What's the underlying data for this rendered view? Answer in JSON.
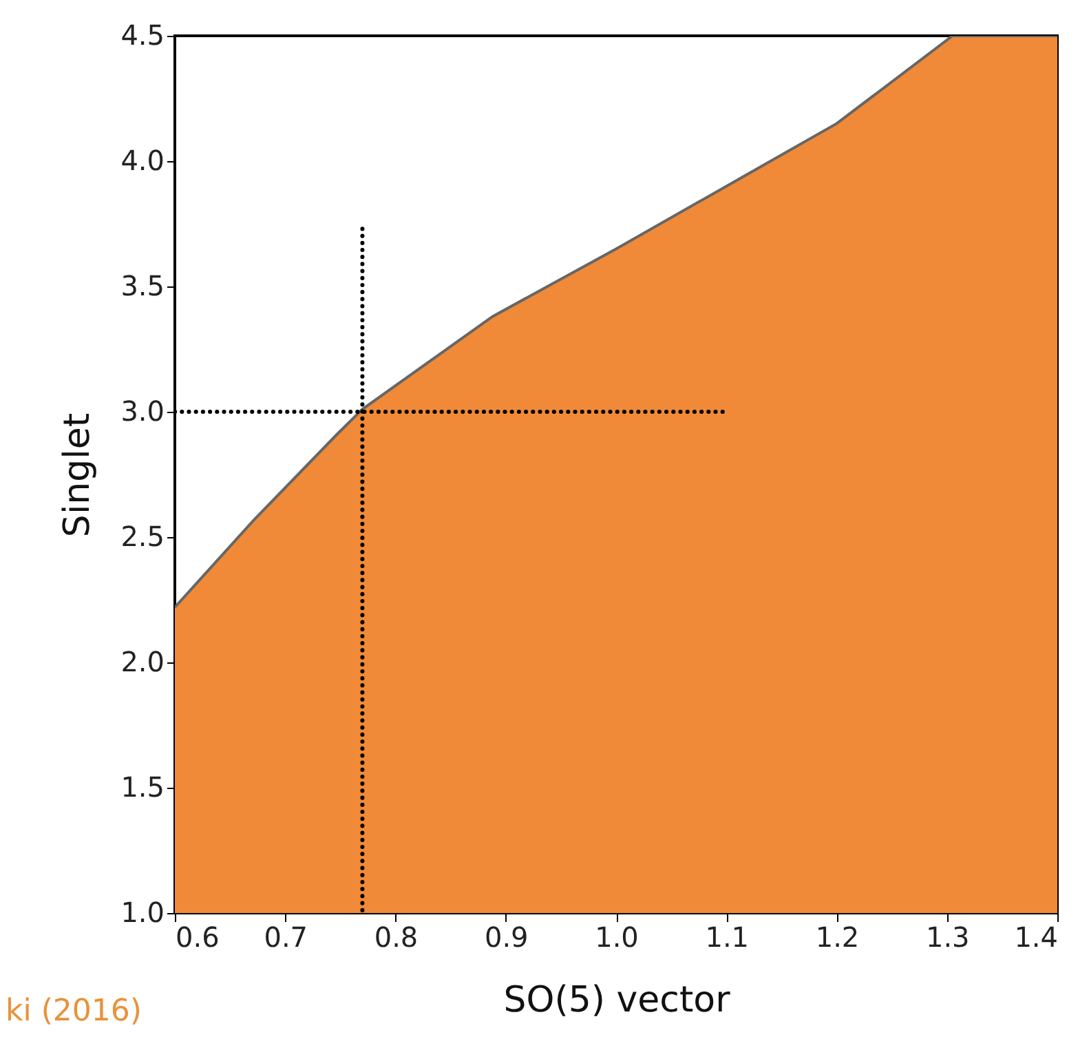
{
  "chart_data": {
    "type": "area",
    "xlabel": "SO(5) vector",
    "ylabel": "Singlet",
    "x": [
      0.6,
      0.672,
      0.747,
      0.77,
      0.888,
      1.0,
      1.1,
      1.2,
      1.305,
      1.4
    ],
    "series": [
      {
        "color": "#f08a38",
        "values": [
          2.22,
          2.57,
          2.91,
          3.01,
          3.38,
          3.65,
          3.9,
          4.15,
          4.5,
          4.5
        ]
      },
      {
        "type": "line",
        "color": "#000000",
        "line_style": "dotted",
        "x": [
          0.77,
          0.77
        ],
        "values": [
          3.73,
          1.0
        ]
      },
      {
        "type": "line",
        "color": "#000000",
        "line_style": "dotted",
        "x": [
          0.6,
          1.1
        ],
        "values": [
          3.0,
          3.0
        ]
      }
    ],
    "xlim": [
      0.6,
      1.4
    ],
    "ylim": [
      1.0,
      4.5
    ],
    "xticks": [
      0.6,
      0.7,
      0.8,
      0.9,
      {
        "value": 1.0,
        "label": "1.0"
      },
      1.1,
      1.2,
      1.3,
      1.4
    ],
    "yticks": [
      {
        "value": 1.0,
        "label": "1.0"
      },
      1.5,
      {
        "value": 2.0,
        "label": "2.0"
      },
      2.5,
      {
        "value": 3.0,
        "label": "3.0"
      },
      3.5,
      {
        "value": 4.0,
        "label": "4.0"
      },
      4.5
    ],
    "grid": false,
    "annotations": [
      "ki (2016)"
    ]
  }
}
